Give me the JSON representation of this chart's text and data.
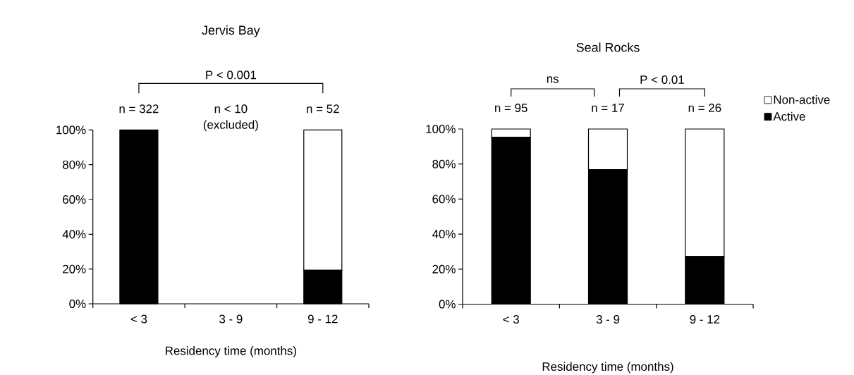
{
  "chart_data": [
    {
      "type": "bar",
      "stacked": true,
      "title": "Jervis Bay",
      "xlabel": "Residency time (months)",
      "categories": [
        "< 3",
        "3 - 9",
        "9 - 12"
      ],
      "series": [
        {
          "color": "#000000",
          "values": [
            100,
            null,
            19.3
          ]
        },
        {
          "color": "#ffffff",
          "values": [
            0,
            null,
            80.7
          ]
        }
      ],
      "ylim": [
        0,
        100
      ],
      "yticks": [
        {
          "value": 0,
          "label": "0%"
        },
        {
          "value": 20,
          "label": "20%"
        },
        {
          "value": 40,
          "label": "40%"
        },
        {
          "value": 60,
          "label": "60%"
        },
        {
          "value": 80,
          "label": "80%"
        },
        {
          "value": 100,
          "label": "100%"
        }
      ],
      "annotations": [
        "P < 0.001",
        "n = 322",
        "n < 10",
        "(excluded)",
        "n = 52"
      ]
    },
    {
      "type": "bar",
      "stacked": true,
      "title": "Seal Rocks",
      "xlabel": "Residency time (months)",
      "legend": "top right",
      "categories": [
        "< 3",
        "3 - 9",
        "9 - 12"
      ],
      "series": [
        {
          "name": "Active",
          "color": "#000000",
          "values": [
            95.3,
            76.8,
            27.2
          ]
        },
        {
          "name": "Non-active",
          "color": "#ffffff",
          "values": [
            4.7,
            23.2,
            72.8
          ]
        }
      ],
      "ylim": [
        0,
        100
      ],
      "yticks": [
        {
          "value": 0,
          "label": "0%"
        },
        {
          "value": 20,
          "label": "20%"
        },
        {
          "value": 40,
          "label": "40%"
        },
        {
          "value": 60,
          "label": "60%"
        },
        {
          "value": 80,
          "label": "80%"
        },
        {
          "value": 100,
          "label": "100%"
        }
      ],
      "annotations": [
        "ns",
        "P < 0.01",
        "n = 95",
        "n = 17",
        "n = 26"
      ]
    }
  ]
}
